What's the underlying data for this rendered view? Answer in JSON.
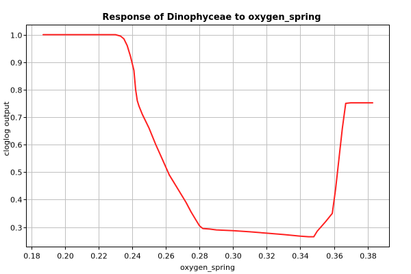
{
  "chart_data": {
    "type": "line",
    "title": "Response of Dinophyceae to oxygen_spring",
    "xlabel": "oxygen_spring",
    "ylabel": "cloglog output",
    "xlim": [
      0.177,
      0.393
    ],
    "ylim": [
      0.228,
      1.035
    ],
    "grid": true,
    "x_ticks": [
      "0.18",
      "0.20",
      "0.22",
      "0.24",
      "0.26",
      "0.28",
      "0.30",
      "0.32",
      "0.34",
      "0.36",
      "0.38"
    ],
    "x_tick_values": [
      0.18,
      0.2,
      0.22,
      0.24,
      0.26,
      0.28,
      0.3,
      0.32,
      0.34,
      0.36,
      0.38
    ],
    "y_ticks": [
      "0.3",
      "0.4",
      "0.5",
      "0.6",
      "0.7",
      "0.8",
      "0.9",
      "1.0"
    ],
    "y_tick_values": [
      0.3,
      0.4,
      0.5,
      0.6,
      0.7,
      0.8,
      0.9,
      1.0
    ],
    "line_color": "#ff2020",
    "series": [
      {
        "x": [
          0.187,
          0.23,
          0.233,
          0.235,
          0.237,
          0.239,
          0.241,
          0.242,
          0.243,
          0.244,
          0.246,
          0.25,
          0.254,
          0.258,
          0.262,
          0.264,
          0.268,
          0.272,
          0.275,
          0.278,
          0.28,
          0.282,
          0.286,
          0.29,
          0.3,
          0.31,
          0.32,
          0.33,
          0.34,
          0.345,
          0.348,
          0.35,
          0.355,
          0.359,
          0.361,
          0.363,
          0.365,
          0.367,
          0.37,
          0.375,
          0.383
        ],
        "y": [
          1.0,
          1.0,
          0.995,
          0.985,
          0.96,
          0.92,
          0.87,
          0.8,
          0.76,
          0.74,
          0.71,
          0.66,
          0.6,
          0.545,
          0.49,
          0.47,
          0.43,
          0.39,
          0.355,
          0.325,
          0.305,
          0.295,
          0.293,
          0.29,
          0.287,
          0.283,
          0.278,
          0.273,
          0.267,
          0.265,
          0.265,
          0.285,
          0.32,
          0.35,
          0.44,
          0.55,
          0.66,
          0.75,
          0.752,
          0.752,
          0.752
        ]
      }
    ]
  }
}
